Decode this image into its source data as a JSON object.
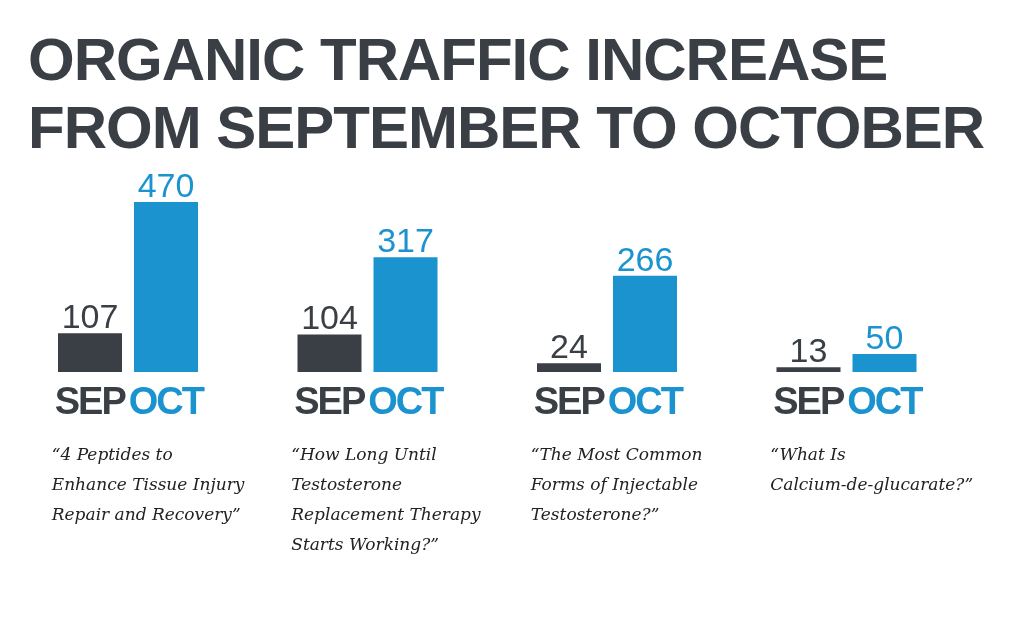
{
  "chart_data": {
    "type": "bar",
    "title": "ORGANIC TRAFFIC INCREASE FROM SEPTEMBER TO OCTOBER",
    "categories": [
      "“4 Peptides to Enhance Tissue Injury Repair and Recovery”",
      "“How Long Until Testosterone Replacement Therapy Starts Working?”",
      "“The Most Common Forms of Injectable Testosterone?”",
      "“What Is Calcium-de-glucarate?”"
    ],
    "series": [
      {
        "name": "SEP",
        "color": "#3a3f45",
        "values": [
          107,
          104,
          24,
          13
        ]
      },
      {
        "name": "OCT",
        "color": "#1b93cf",
        "values": [
          470,
          317,
          266,
          50
        ]
      }
    ],
    "data_labels": true,
    "grid": false,
    "legend": false
  }
}
